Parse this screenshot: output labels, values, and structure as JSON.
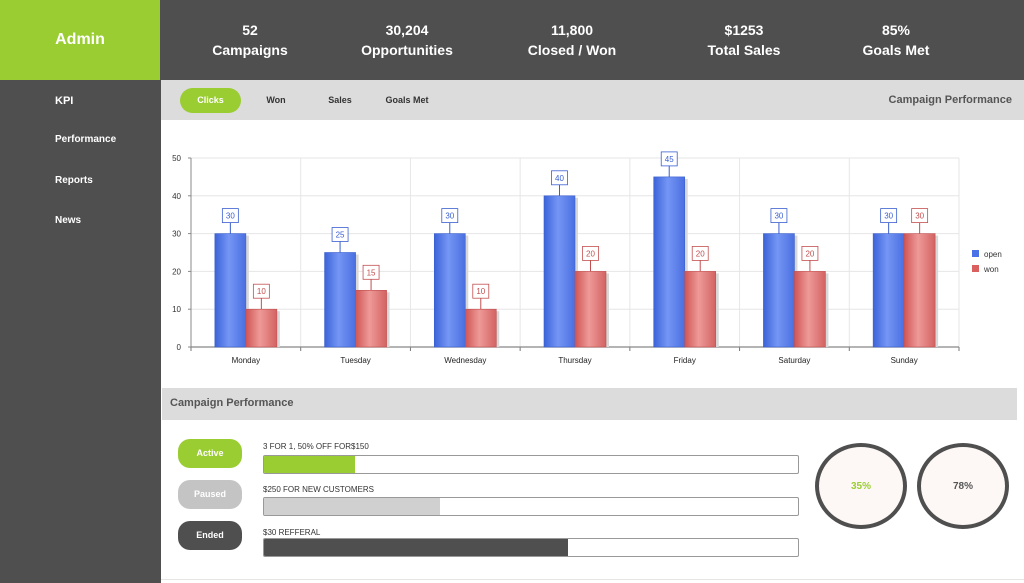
{
  "brand": {
    "title": "Admin",
    "color": "#9acd32"
  },
  "sidebar": {
    "items": [
      {
        "label": "KPI"
      },
      {
        "label": "Performance"
      },
      {
        "label": "Reports"
      },
      {
        "label": "News"
      }
    ]
  },
  "header": {
    "stats": [
      {
        "value": "52",
        "label": "Campaigns"
      },
      {
        "value": "30,204",
        "label": "Opportunities"
      },
      {
        "value": "11,800",
        "label": "Closed / Won"
      },
      {
        "value": "$1253",
        "label": "Total Sales"
      },
      {
        "value": "85%",
        "label": "Goals Met"
      }
    ]
  },
  "tabs": {
    "items": [
      {
        "label": "Clicks",
        "active": true
      },
      {
        "label": "Won",
        "active": false
      },
      {
        "label": "Sales",
        "active": false
      },
      {
        "label": "Goals Met",
        "active": false
      }
    ],
    "title": "Campaign Performance"
  },
  "chart_data": {
    "type": "bar",
    "title": "",
    "xlabel": "",
    "ylabel": "",
    "categories": [
      "Monday",
      "Tuesday",
      "Wednesday",
      "Thursday",
      "Friday",
      "Saturday",
      "Sunday"
    ],
    "series": [
      {
        "name": "open",
        "color": "#4a72e6",
        "values": [
          30,
          25,
          30,
          40,
          45,
          30,
          30
        ]
      },
      {
        "name": "won",
        "color": "#d9605f",
        "values": [
          10,
          15,
          10,
          20,
          20,
          20,
          30
        ]
      }
    ],
    "ylim": [
      0,
      50
    ],
    "yticks": [
      0,
      10,
      20,
      30,
      40,
      50
    ],
    "grid": true,
    "data_labels": true,
    "legend": "right"
  },
  "campaigns": {
    "title": "Campaign Performance",
    "items": [
      {
        "status": "Active",
        "status_color": "#9acd32",
        "name": "3 FOR 1, 50% OFF FOR$150",
        "progress": 0.17,
        "fill_color": "#9acd32"
      },
      {
        "status": "Paused",
        "status_color": "#c4c4c4",
        "name": "$250 FOR NEW CUSTOMERS",
        "progress": 0.33,
        "fill_color": "#d0d0d0"
      },
      {
        "status": "Ended",
        "status_color": "#4f4f4f",
        "name": "$30 REFFERAL",
        "progress": 0.57,
        "fill_color": "#4f4f4f"
      }
    ],
    "gauges": [
      {
        "value": "35%",
        "color": "#9acd32"
      },
      {
        "value": "78%",
        "color": "#555555"
      }
    ]
  }
}
